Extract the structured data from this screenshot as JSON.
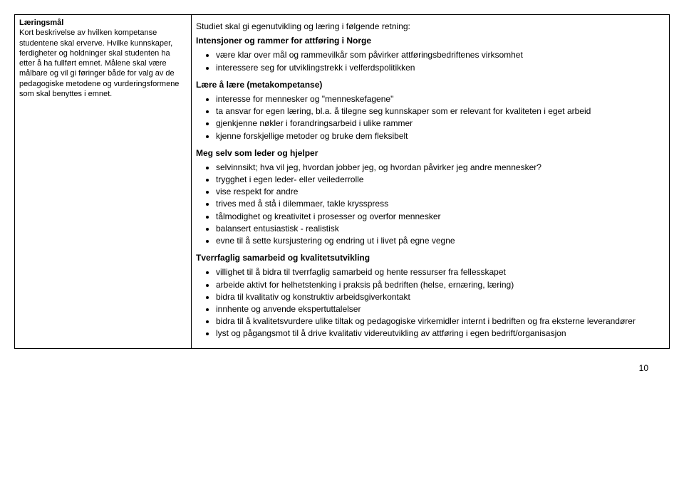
{
  "left": {
    "heading": "Læringsmål",
    "desc": "Kort beskrivelse av hvilken kompetanse studentene skal erverve. Hvilke kunnskaper, ferdigheter og holdninger skal studenten ha etter å ha fullført emnet. Målene skal være målbare og vil gi føringer både for valg av de pedagogiske metodene og vurderingsformene som skal benyttes i emnet."
  },
  "right": {
    "intro": "Studiet skal gi egenutvikling og læring i følgende retning:",
    "h1": "Intensjoner og rammer for attføring i Norge",
    "l1a": "være klar over mål og rammevilkår som påvirker attføringsbedriftenes virksomhet",
    "l1b": "interessere seg for utviklingstrekk i velferdspolitikken",
    "h2": "Lære å lære (metakompetanse)",
    "l2a": "interesse for mennesker og \"menneskefagene\"",
    "l2b": "ta ansvar for egen læring, bl.a. å tilegne seg kunnskaper som er relevant for kvaliteten i eget arbeid",
    "l2c": "gjenkjenne nøkler i forandringsarbeid i ulike rammer",
    "l2d": "kjenne forskjellige metoder og bruke dem fleksibelt",
    "h3": "Meg selv som leder og hjelper",
    "l3a": "selvinnsikt; hva vil jeg, hvordan jobber jeg, og hvordan påvirker jeg andre mennesker?",
    "l3b": "trygghet i egen leder- eller veilederrolle",
    "l3c": "vise respekt for andre",
    "l3d": "trives med å stå i dilemmaer, takle krysspress",
    "l3e": "tålmodighet og kreativitet i prosesser og overfor mennesker",
    "l3f": "balansert entusiastisk - realistisk",
    "l3g": "evne til å sette kursjustering og endring ut i livet på egne vegne",
    "h4": "Tverrfaglig samarbeid og kvalitetsutvikling",
    "l4a": "villighet til å bidra til tverrfaglig samarbeid og hente ressurser fra fellesskapet",
    "l4b": "arbeide aktivt for helhetstenking i praksis på bedriften (helse, ernæring, læring)",
    "l4c": "bidra til kvalitativ og konstruktiv arbeidsgiverkontakt",
    "l4d": "innhente og anvende ekspertuttalelser",
    "l4e": "bidra til å kvalitetsvurdere ulike tiltak og pedagogiske virkemidler internt i bedriften og fra eksterne leverandører",
    "l4f": "lyst og pågangsmot til å drive kvalitativ videreutvikling av attføring i egen bedrift/organisasjon"
  },
  "page": "10"
}
